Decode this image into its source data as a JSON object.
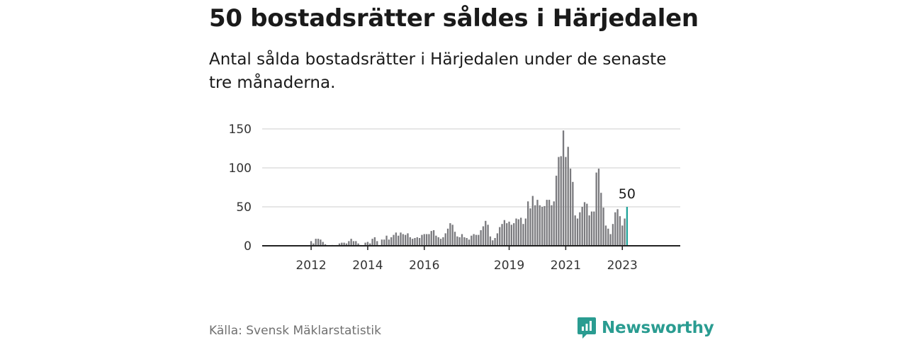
{
  "title": "50 bostadsrätter såldes i Härjedalen",
  "subtitle": "Antal sålda bostadsrätter i Härjedalen under de senaste tre månaderna.",
  "source": "Källa: Svensk Mäklarstatistik",
  "brand": {
    "name": "Newsworthy",
    "icon": "newsworthy-logo-icon",
    "color": "#2a9c91"
  },
  "colors": {
    "bar": "#7a7a7e",
    "highlight": "#1fa39a",
    "grid": "#d7d7d7"
  },
  "chart_data": {
    "type": "bar",
    "title": "",
    "xlabel": "",
    "ylabel": "",
    "ylim": [
      0,
      150
    ],
    "yticks": [
      0,
      50,
      100,
      150
    ],
    "ytick_labels": [
      "0",
      "50",
      "100",
      "150"
    ],
    "xticks": [
      "2012",
      "2014",
      "2016",
      "2019",
      "2021",
      "2023"
    ],
    "xticks_month_index": [
      12,
      36,
      60,
      96,
      120,
      144
    ],
    "x_start": "2011-01",
    "grid": true,
    "legend": "none",
    "highlight_last": true,
    "annotation": {
      "text": "50",
      "target": "last"
    },
    "values": [
      0,
      0,
      0,
      0,
      0,
      0,
      0,
      0,
      0,
      0,
      0,
      0,
      6,
      3,
      9,
      9,
      8,
      5,
      2,
      0,
      0,
      1,
      0,
      1,
      3,
      4,
      4,
      3,
      6,
      9,
      6,
      6,
      3,
      1,
      0,
      4,
      5,
      3,
      9,
      11,
      6,
      1,
      8,
      8,
      13,
      8,
      11,
      14,
      17,
      13,
      17,
      15,
      14,
      16,
      11,
      9,
      10,
      11,
      10,
      14,
      15,
      15,
      15,
      19,
      20,
      13,
      11,
      9,
      11,
      16,
      22,
      29,
      27,
      18,
      12,
      11,
      15,
      11,
      10,
      8,
      13,
      15,
      14,
      14,
      20,
      25,
      32,
      27,
      12,
      7,
      10,
      16,
      24,
      28,
      33,
      29,
      31,
      27,
      29,
      35,
      34,
      36,
      28,
      35,
      57,
      48,
      64,
      52,
      59,
      52,
      50,
      51,
      59,
      59,
      52,
      57,
      90,
      114,
      115,
      148,
      114,
      127,
      99,
      82,
      39,
      35,
      43,
      50,
      56,
      54,
      39,
      44,
      44,
      94,
      99,
      68,
      49,
      26,
      22,
      15,
      28,
      43,
      47,
      38,
      26,
      35,
      50
    ]
  }
}
